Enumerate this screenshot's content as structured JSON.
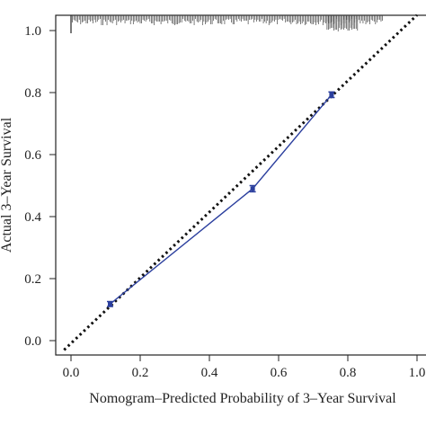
{
  "chart_data": {
    "type": "line",
    "xlabel": "Nomogram–Predicted Probability of 3–Year Survival",
    "ylabel": "Actual 3–Year Survival",
    "xlim": [
      -0.02,
      1.0
    ],
    "ylim": [
      -0.03,
      1.05
    ],
    "x_ticks": [
      "0.0",
      "0.2",
      "0.4",
      "0.6",
      "0.8",
      "1.0"
    ],
    "y_ticks": [
      "0.0",
      "0.2",
      "0.4",
      "0.6",
      "0.8",
      "1.0"
    ],
    "grid": false,
    "legend": "none",
    "series": [
      {
        "style": "solid-with-error-bars",
        "color": "#2b3f9e",
        "points": [
          {
            "x": 0.113,
            "y": 0.118,
            "err": 0.008
          },
          {
            "x": 0.525,
            "y": 0.49,
            "err": 0.01
          },
          {
            "x": 0.753,
            "y": 0.793,
            "err": 0.009
          }
        ]
      },
      {
        "style": "dotted-reference",
        "color": "#111111",
        "points": [
          {
            "x": -0.02,
            "y": -0.03
          },
          {
            "x": 1.0,
            "y": 1.05
          }
        ]
      }
    ],
    "rug": {
      "position": "top",
      "tall_at": [
        0.0
      ],
      "span": [
        0.0,
        0.9
      ]
    }
  }
}
